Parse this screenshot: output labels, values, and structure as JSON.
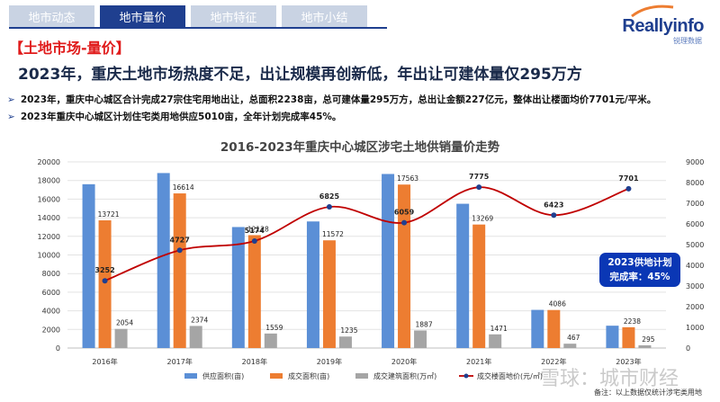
{
  "tabs": [
    {
      "label": "地市动态",
      "active": false
    },
    {
      "label": "地市量价",
      "active": true
    },
    {
      "label": "地市特征",
      "active": false
    },
    {
      "label": "地市小结",
      "active": false
    }
  ],
  "logo": {
    "main": "Reallyinfo",
    "sub": "锐理数据"
  },
  "section_title": "【土地市场-量价】",
  "headline": "2023年，重庆土地市场热度不足，出让规模再创新低，年出让可建体量仅295万方",
  "bullets": [
    "2023年，重庆中心城区合计完成27宗住宅用地出让，总面积2238亩，总可建体量295万方，总出让金额227亿元，整体出让楼面均价7701元/平米。",
    "2023年重庆中心城区计划住宅类用地供应5010亩，全年计划完成率45%。"
  ],
  "bullet_marker": "➢",
  "callout": {
    "line1": "2023供地计划",
    "line2": "完成率：45%"
  },
  "footnote": "备注：以上数据仅统计涉宅类用地",
  "watermark": "雪球：城市财经",
  "chart_data": {
    "type": "bar",
    "title": "2016-2023年重庆中心城区涉宅土地供销量价走势",
    "categories": [
      "2016年",
      "2017年",
      "2018年",
      "2019年",
      "2020年",
      "2021年",
      "2022年",
      "2023年"
    ],
    "series": [
      {
        "name": "供应面积(亩)",
        "kind": "bar",
        "axis": "left",
        "color": "#5b8fd6",
        "values": [
          17600,
          18800,
          13000,
          13600,
          18700,
          15500,
          4100,
          2400
        ],
        "labels": [
          null,
          null,
          null,
          null,
          null,
          null,
          null,
          null
        ]
      },
      {
        "name": "成交面积(亩)",
        "kind": "bar",
        "axis": "left",
        "color": "#ed7d31",
        "values": [
          13721,
          16614,
          12128,
          11572,
          17563,
          13269,
          4086,
          2238
        ],
        "labels": [
          "13721",
          "16614",
          "12128",
          "11572",
          "17563",
          "13269",
          "4086",
          "2238"
        ]
      },
      {
        "name": "成交建筑面积(万㎡)",
        "kind": "bar",
        "axis": "left",
        "color": "#a5a5a5",
        "values": [
          2054,
          2374,
          1559,
          1235,
          1887,
          1471,
          467,
          295
        ],
        "labels": [
          "2054",
          "2374",
          "1559",
          "1235",
          "1887",
          "1471",
          "467",
          "295"
        ]
      },
      {
        "name": "成交楼面地价(元/㎡)",
        "kind": "line",
        "axis": "right",
        "color": "#c00000",
        "values": [
          3252,
          4727,
          5174,
          6825,
          6059,
          7775,
          6423,
          7701
        ],
        "labels": [
          "3252",
          "4727",
          "5174",
          "6825",
          "6059",
          "7775",
          "6423",
          "7701"
        ]
      }
    ],
    "left_axis": {
      "min": 0,
      "max": 20000,
      "ticks": [
        "0",
        "2000",
        "4000",
        "6000",
        "8000",
        "10000",
        "12000",
        "14000",
        "16000",
        "18000",
        "20000"
      ]
    },
    "right_axis": {
      "min": 0,
      "max": 9000,
      "ticks": [
        "0",
        "1000",
        "2000",
        "3000",
        "4000",
        "5000",
        "6000",
        "7000",
        "8000",
        "9000"
      ]
    },
    "grid": true,
    "legend_position": "bottom"
  }
}
